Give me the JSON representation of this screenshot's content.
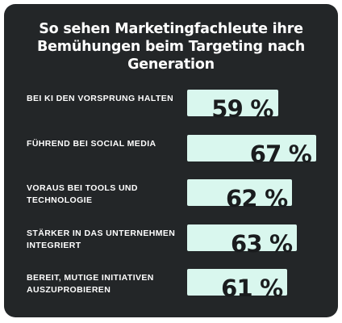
{
  "chart_data": {
    "type": "bar",
    "orientation": "horizontal",
    "title": "So sehen Marketingfachleute ihre Bemühungen beim Targeting nach Generation",
    "categories": [
      "BEI KI DEN VORSPRUNG HALTEN",
      "FÜHREND BEI SOCIAL MEDIA",
      "VORAUS BEI TOOLS UND TECHNOLOGIE",
      "STÄRKER IN DAS UNTERNEHMEN INTEGRIERT",
      "BEREIT, MUTIGE INITIATIVEN AUSZUPROBIEREN"
    ],
    "values": [
      59,
      67,
      62,
      63,
      61
    ],
    "value_labels": [
      "59 %",
      "67 %",
      "62 %",
      "63 %",
      "61 %"
    ],
    "unit": "%",
    "xlim": [
      0,
      100
    ],
    "grid": false,
    "legend": "none",
    "colors": {
      "background": "#232628",
      "bar": "#d9f7ee",
      "label_text": "#ffffff",
      "value_text": "#1a1c1e"
    }
  }
}
